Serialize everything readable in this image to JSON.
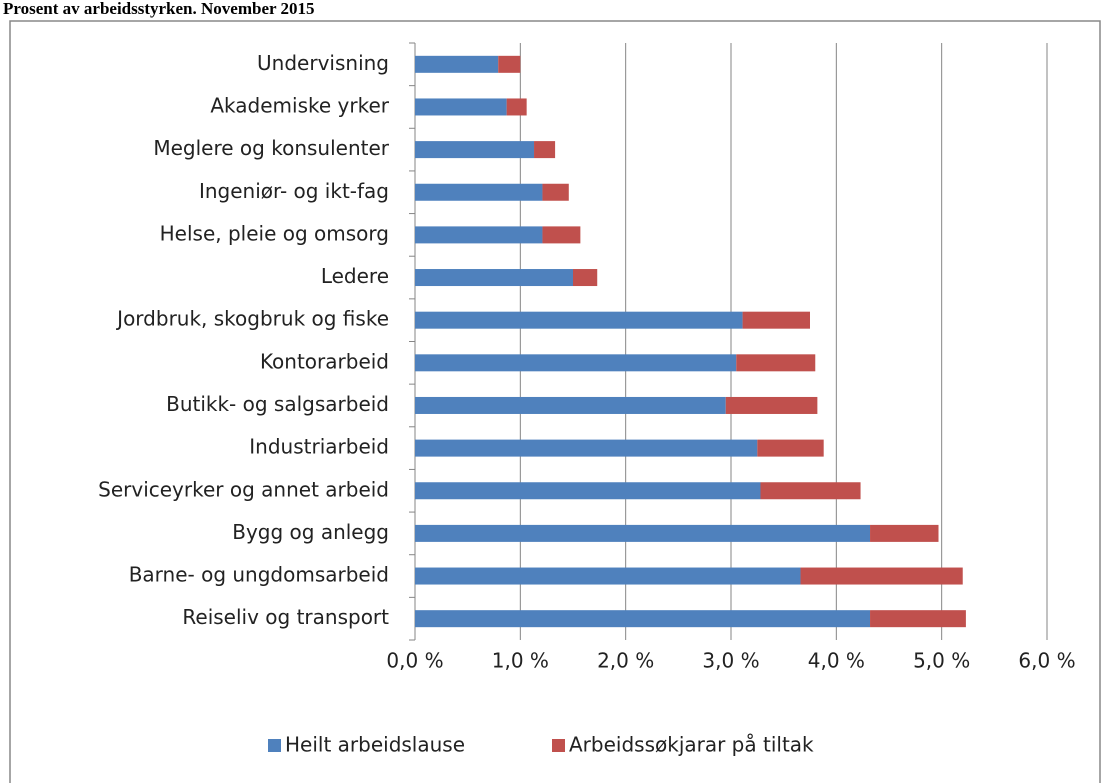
{
  "chart_data": {
    "type": "stacked-barh",
    "title": "Prosent av arbeidsstyrken. November 2015",
    "categories": [
      "Undervisning",
      "Akademiske yrker",
      "Meglere og konsulenter",
      "Ingeniør- og ikt-fag",
      "Helse, pleie og omsorg",
      "Ledere",
      "Jordbruk, skogbruk og fiske",
      "Kontorarbeid",
      "Butikk- og salgsarbeid",
      "Industriarbeid",
      "Serviceyrker og annet arbeid",
      "Bygg og anlegg",
      "Barne- og ungdomsarbeid",
      "Reiseliv og transport"
    ],
    "series": [
      {
        "name": "Heilt arbeidslause",
        "color": "#4f81bd",
        "values": [
          0.79,
          0.87,
          1.13,
          1.21,
          1.21,
          1.5,
          3.11,
          3.05,
          2.95,
          3.25,
          3.28,
          4.32,
          3.66,
          4.32
        ]
      },
      {
        "name": "Arbeidssøkjarar på tiltak",
        "color": "#c0504d",
        "values": [
          0.21,
          0.19,
          0.2,
          0.25,
          0.36,
          0.23,
          0.64,
          0.75,
          0.87,
          0.63,
          0.95,
          0.65,
          1.54,
          0.91
        ]
      }
    ],
    "xlim": [
      0,
      6
    ],
    "xticks": [
      {
        "value": 0,
        "label": "0,0 %"
      },
      {
        "value": 1,
        "label": "1,0 %"
      },
      {
        "value": 2,
        "label": "2,0 %"
      },
      {
        "value": 3,
        "label": "3,0 %"
      },
      {
        "value": 4,
        "label": "4,0 %"
      },
      {
        "value": 5,
        "label": "5,0 %"
      },
      {
        "value": 6,
        "label": "6,0 %"
      }
    ],
    "grid": true,
    "legend": "bottom"
  }
}
